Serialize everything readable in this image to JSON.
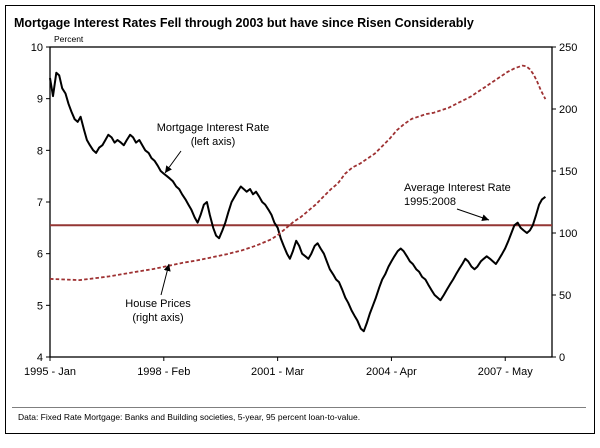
{
  "chart_data": {
    "type": "line",
    "title": "Mortgage Interest Rates Fell through 2003 but have since Risen Considerably",
    "left_axis_label": "Percent",
    "footnote": "Data:  Fixed Rate Mortgage:  Banks and Building societies, 5-year, 95 percent loan-to-value.",
    "x_range": [
      1995.0,
      2008.6
    ],
    "x_ticks": [
      {
        "x": 1995.0,
        "label": "1995 - Jan"
      },
      {
        "x": 1998.083,
        "label": "1998 - Feb"
      },
      {
        "x": 2001.167,
        "label": "2001 - Mar"
      },
      {
        "x": 2004.25,
        "label": "2004 - Apr"
      },
      {
        "x": 2007.333,
        "label": "2007 - May"
      }
    ],
    "left_axis": {
      "range": [
        4,
        10
      ],
      "ticks": [
        4,
        5,
        6,
        7,
        8,
        9,
        10
      ]
    },
    "right_axis": {
      "range": [
        0,
        250
      ],
      "ticks": [
        0,
        50,
        100,
        150,
        200,
        250
      ]
    },
    "average_line": {
      "value": 6.55,
      "axis": "left",
      "color": "#943634"
    },
    "annotations": [
      {
        "id": "mortgage",
        "lines": [
          "Mortgage Interest Rate",
          "(left axis)"
        ]
      },
      {
        "id": "house",
        "lines": [
          "House Prices",
          "(right axis)"
        ]
      },
      {
        "id": "average",
        "lines": [
          "Average Interest Rate",
          "1995:2008"
        ]
      }
    ],
    "series": [
      {
        "name": "Mortgage Interest Rate",
        "axis": "left",
        "color": "#000000",
        "style": "solid",
        "width": 2,
        "points": [
          [
            1995.0,
            9.4
          ],
          [
            1995.08,
            9.05
          ],
          [
            1995.17,
            9.5
          ],
          [
            1995.25,
            9.45
          ],
          [
            1995.33,
            9.2
          ],
          [
            1995.42,
            9.1
          ],
          [
            1995.5,
            8.9
          ],
          [
            1995.58,
            8.75
          ],
          [
            1995.67,
            8.6
          ],
          [
            1995.75,
            8.55
          ],
          [
            1995.83,
            8.65
          ],
          [
            1995.92,
            8.4
          ],
          [
            1996.0,
            8.2
          ],
          [
            1996.08,
            8.1
          ],
          [
            1996.17,
            8.0
          ],
          [
            1996.25,
            7.95
          ],
          [
            1996.33,
            8.05
          ],
          [
            1996.42,
            8.1
          ],
          [
            1996.5,
            8.2
          ],
          [
            1996.58,
            8.3
          ],
          [
            1996.67,
            8.25
          ],
          [
            1996.75,
            8.15
          ],
          [
            1996.83,
            8.2
          ],
          [
            1996.92,
            8.15
          ],
          [
            1997.0,
            8.1
          ],
          [
            1997.08,
            8.2
          ],
          [
            1997.17,
            8.3
          ],
          [
            1997.25,
            8.25
          ],
          [
            1997.33,
            8.15
          ],
          [
            1997.42,
            8.2
          ],
          [
            1997.5,
            8.1
          ],
          [
            1997.58,
            8.0
          ],
          [
            1997.67,
            7.95
          ],
          [
            1997.75,
            7.85
          ],
          [
            1997.83,
            7.8
          ],
          [
            1997.92,
            7.7
          ],
          [
            1998.0,
            7.6
          ],
          [
            1998.08,
            7.55
          ],
          [
            1998.17,
            7.5
          ],
          [
            1998.25,
            7.45
          ],
          [
            1998.33,
            7.4
          ],
          [
            1998.42,
            7.3
          ],
          [
            1998.5,
            7.25
          ],
          [
            1998.58,
            7.15
          ],
          [
            1998.67,
            7.05
          ],
          [
            1998.75,
            6.95
          ],
          [
            1998.83,
            6.85
          ],
          [
            1998.92,
            6.7
          ],
          [
            1999.0,
            6.6
          ],
          [
            1999.08,
            6.75
          ],
          [
            1999.17,
            6.95
          ],
          [
            1999.25,
            7.0
          ],
          [
            1999.33,
            6.75
          ],
          [
            1999.42,
            6.5
          ],
          [
            1999.5,
            6.35
          ],
          [
            1999.58,
            6.3
          ],
          [
            1999.67,
            6.45
          ],
          [
            1999.75,
            6.6
          ],
          [
            1999.83,
            6.8
          ],
          [
            1999.92,
            7.0
          ],
          [
            2000.0,
            7.1
          ],
          [
            2000.08,
            7.2
          ],
          [
            2000.17,
            7.3
          ],
          [
            2000.25,
            7.25
          ],
          [
            2000.33,
            7.2
          ],
          [
            2000.42,
            7.25
          ],
          [
            2000.5,
            7.15
          ],
          [
            2000.58,
            7.2
          ],
          [
            2000.67,
            7.1
          ],
          [
            2000.75,
            7.0
          ],
          [
            2000.83,
            6.95
          ],
          [
            2000.92,
            6.85
          ],
          [
            2001.0,
            6.75
          ],
          [
            2001.08,
            6.6
          ],
          [
            2001.17,
            6.5
          ],
          [
            2001.25,
            6.3
          ],
          [
            2001.33,
            6.15
          ],
          [
            2001.42,
            6.0
          ],
          [
            2001.5,
            5.9
          ],
          [
            2001.58,
            6.05
          ],
          [
            2001.67,
            6.25
          ],
          [
            2001.75,
            6.15
          ],
          [
            2001.83,
            6.0
          ],
          [
            2001.92,
            5.95
          ],
          [
            2002.0,
            5.9
          ],
          [
            2002.08,
            6.0
          ],
          [
            2002.17,
            6.15
          ],
          [
            2002.25,
            6.2
          ],
          [
            2002.33,
            6.1
          ],
          [
            2002.42,
            6.0
          ],
          [
            2002.5,
            5.85
          ],
          [
            2002.58,
            5.7
          ],
          [
            2002.67,
            5.6
          ],
          [
            2002.75,
            5.5
          ],
          [
            2002.83,
            5.45
          ],
          [
            2002.92,
            5.3
          ],
          [
            2003.0,
            5.15
          ],
          [
            2003.08,
            5.05
          ],
          [
            2003.17,
            4.9
          ],
          [
            2003.25,
            4.8
          ],
          [
            2003.33,
            4.7
          ],
          [
            2003.42,
            4.55
          ],
          [
            2003.5,
            4.5
          ],
          [
            2003.58,
            4.65
          ],
          [
            2003.67,
            4.85
          ],
          [
            2003.75,
            5.0
          ],
          [
            2003.83,
            5.15
          ],
          [
            2003.92,
            5.35
          ],
          [
            2004.0,
            5.5
          ],
          [
            2004.08,
            5.6
          ],
          [
            2004.17,
            5.75
          ],
          [
            2004.25,
            5.85
          ],
          [
            2004.33,
            5.95
          ],
          [
            2004.42,
            6.05
          ],
          [
            2004.5,
            6.1
          ],
          [
            2004.58,
            6.05
          ],
          [
            2004.67,
            5.95
          ],
          [
            2004.75,
            5.85
          ],
          [
            2004.83,
            5.8
          ],
          [
            2004.92,
            5.7
          ],
          [
            2005.0,
            5.65
          ],
          [
            2005.08,
            5.55
          ],
          [
            2005.17,
            5.5
          ],
          [
            2005.25,
            5.4
          ],
          [
            2005.33,
            5.3
          ],
          [
            2005.42,
            5.2
          ],
          [
            2005.5,
            5.15
          ],
          [
            2005.58,
            5.1
          ],
          [
            2005.67,
            5.2
          ],
          [
            2005.75,
            5.3
          ],
          [
            2005.83,
            5.4
          ],
          [
            2005.92,
            5.5
          ],
          [
            2006.0,
            5.6
          ],
          [
            2006.08,
            5.7
          ],
          [
            2006.17,
            5.8
          ],
          [
            2006.25,
            5.9
          ],
          [
            2006.33,
            5.85
          ],
          [
            2006.42,
            5.75
          ],
          [
            2006.5,
            5.7
          ],
          [
            2006.58,
            5.75
          ],
          [
            2006.67,
            5.85
          ],
          [
            2006.75,
            5.9
          ],
          [
            2006.83,
            5.95
          ],
          [
            2006.92,
            5.9
          ],
          [
            2007.0,
            5.85
          ],
          [
            2007.08,
            5.8
          ],
          [
            2007.17,
            5.9
          ],
          [
            2007.25,
            6.0
          ],
          [
            2007.33,
            6.1
          ],
          [
            2007.42,
            6.25
          ],
          [
            2007.5,
            6.4
          ],
          [
            2007.58,
            6.55
          ],
          [
            2007.67,
            6.6
          ],
          [
            2007.75,
            6.5
          ],
          [
            2007.83,
            6.45
          ],
          [
            2007.92,
            6.4
          ],
          [
            2008.0,
            6.45
          ],
          [
            2008.08,
            6.55
          ],
          [
            2008.17,
            6.75
          ],
          [
            2008.25,
            6.95
          ],
          [
            2008.33,
            7.05
          ],
          [
            2008.42,
            7.1
          ]
        ]
      },
      {
        "name": "House Prices",
        "axis": "right",
        "color": "#9e3132",
        "style": "dashed",
        "width": 1.8,
        "points": [
          [
            1995.0,
            63
          ],
          [
            1995.4,
            62.5
          ],
          [
            1995.8,
            62
          ],
          [
            1996.2,
            63.5
          ],
          [
            1996.6,
            65
          ],
          [
            1997.0,
            67
          ],
          [
            1997.4,
            69
          ],
          [
            1997.8,
            71
          ],
          [
            1998.2,
            73.5
          ],
          [
            1998.6,
            76
          ],
          [
            1999.0,
            78
          ],
          [
            1999.4,
            80.5
          ],
          [
            1999.8,
            83
          ],
          [
            2000.2,
            86
          ],
          [
            2000.6,
            90
          ],
          [
            2001.0,
            95
          ],
          [
            2001.2,
            99
          ],
          [
            2001.4,
            104
          ],
          [
            2001.6,
            109
          ],
          [
            2001.8,
            113
          ],
          [
            2002.0,
            118
          ],
          [
            2002.2,
            123
          ],
          [
            2002.4,
            129
          ],
          [
            2002.6,
            135
          ],
          [
            2002.8,
            140
          ],
          [
            2003.0,
            148
          ],
          [
            2003.2,
            153
          ],
          [
            2003.4,
            156
          ],
          [
            2003.6,
            160
          ],
          [
            2003.8,
            164
          ],
          [
            2004.0,
            170
          ],
          [
            2004.2,
            176
          ],
          [
            2004.4,
            183
          ],
          [
            2004.6,
            188
          ],
          [
            2004.8,
            192
          ],
          [
            2005.0,
            194
          ],
          [
            2005.2,
            196
          ],
          [
            2005.4,
            197
          ],
          [
            2005.6,
            199
          ],
          [
            2005.8,
            201
          ],
          [
            2006.0,
            204
          ],
          [
            2006.2,
            207
          ],
          [
            2006.4,
            210
          ],
          [
            2006.6,
            214
          ],
          [
            2006.8,
            218
          ],
          [
            2007.0,
            222
          ],
          [
            2007.2,
            226
          ],
          [
            2007.4,
            230
          ],
          [
            2007.6,
            233
          ],
          [
            2007.8,
            235
          ],
          [
            2007.9,
            234.5
          ],
          [
            2008.0,
            232
          ],
          [
            2008.1,
            228
          ],
          [
            2008.2,
            222
          ],
          [
            2008.3,
            215
          ],
          [
            2008.42,
            208
          ]
        ]
      }
    ]
  }
}
